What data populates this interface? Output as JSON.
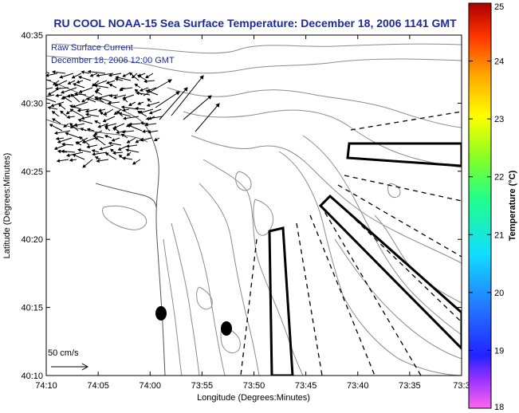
{
  "title": "RU COOL  NOAA-15  Sea Surface Temperature:  December 18, 2006 1141 GMT",
  "overlay": {
    "line1": "Raw Surface Current",
    "line2": "December 18, 2006 12:00 GMT"
  },
  "axes": {
    "xlabel": "Longitude (Degrees:Minutes)",
    "ylabel": "Latitude (Degrees:Minutes)",
    "x_ticks": [
      "74:10",
      "74:05",
      "74:00",
      "73:55",
      "73:50",
      "73:45",
      "73:40",
      "73:35",
      "73:3"
    ],
    "y_ticks": [
      "40:35",
      "40:30",
      "40:25",
      "40:20",
      "40:15",
      "40:10"
    ]
  },
  "scale_label": "50 cm/s",
  "colorbar": {
    "label": "Temperature (°C)",
    "ticks": [
      "25",
      "24",
      "23",
      "22",
      "21",
      "20",
      "19",
      "18"
    ],
    "min": 18,
    "max": 25
  },
  "colors": {
    "title": "#1c2a9c",
    "contour": "#8c8c8c",
    "frame": "#000000"
  }
}
